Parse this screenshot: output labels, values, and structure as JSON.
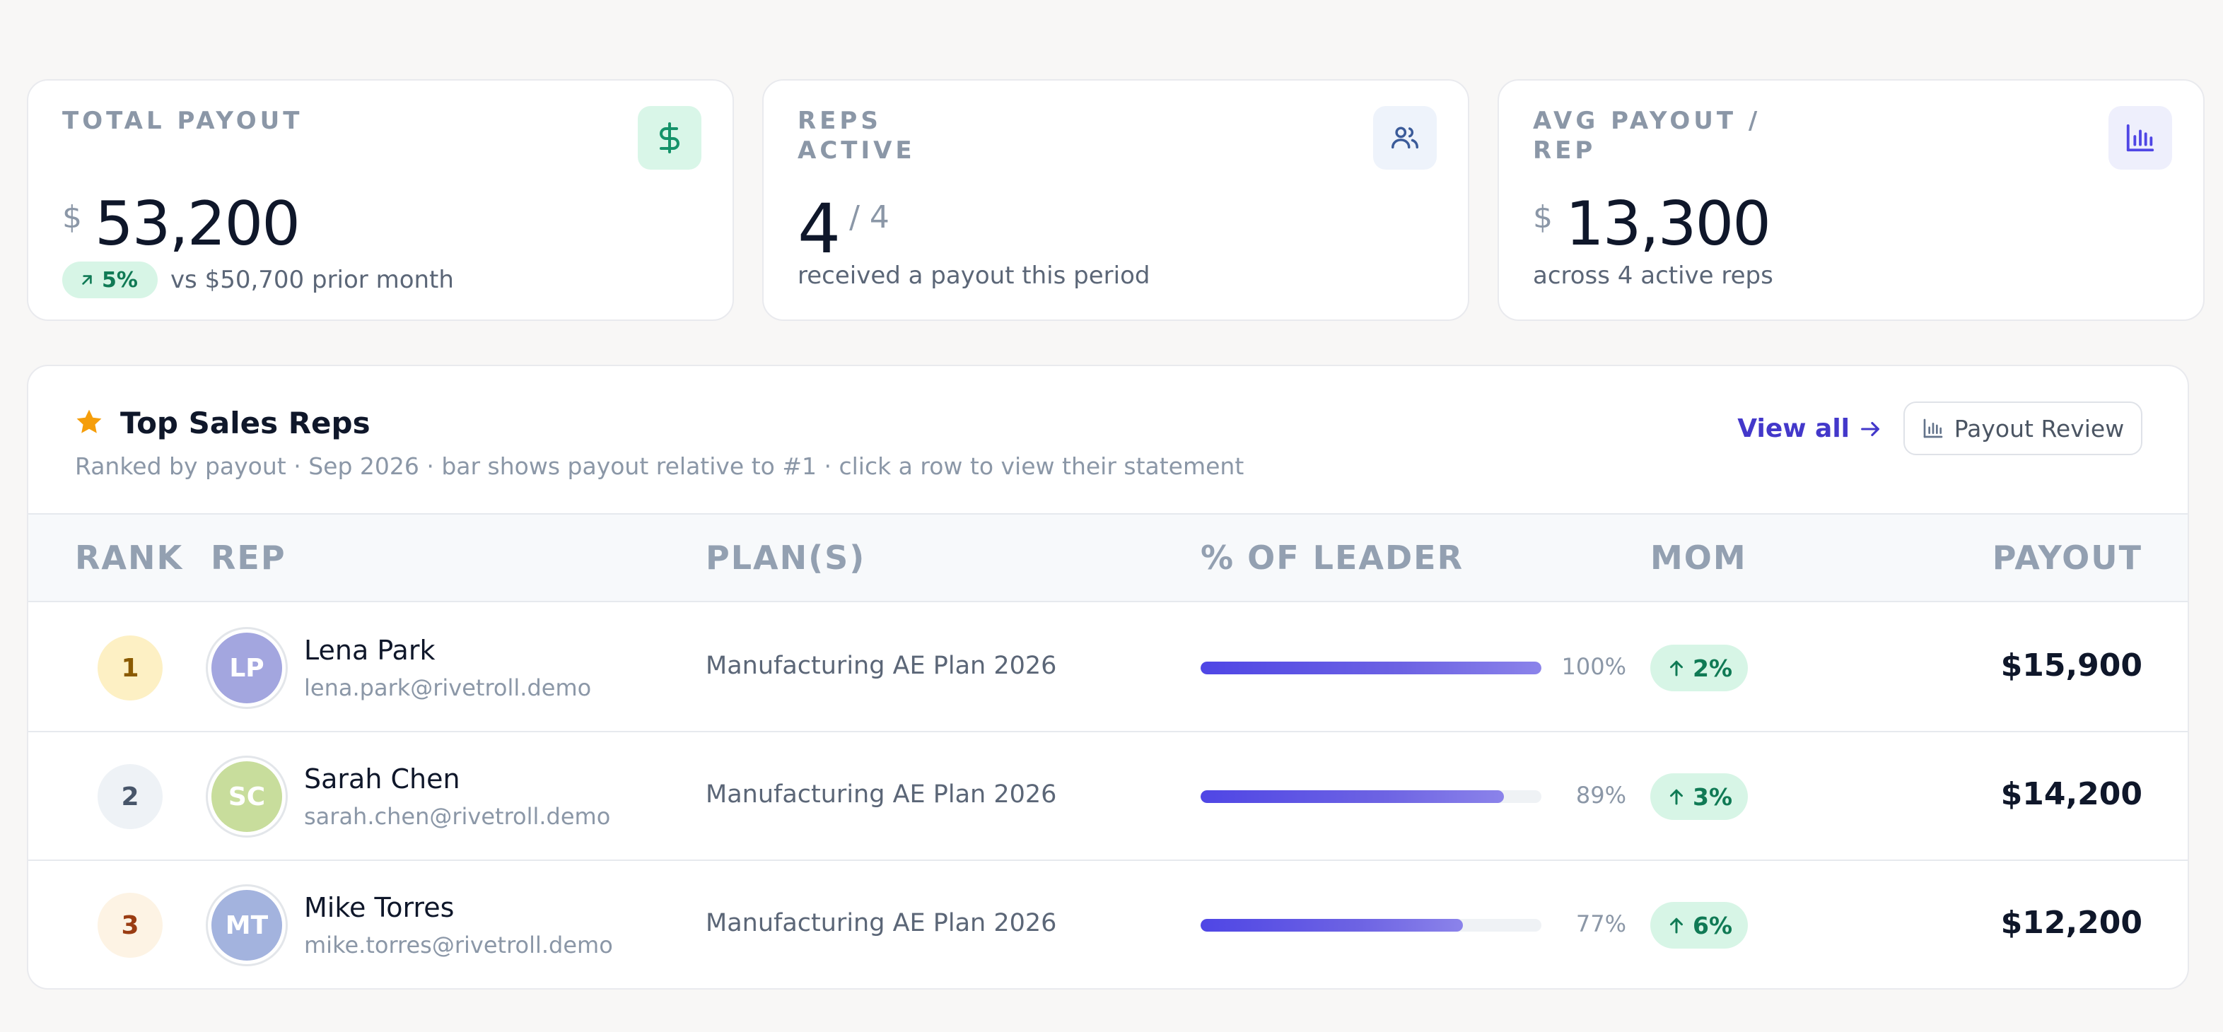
{
  "kpis": {
    "total_payout": {
      "label": "TOTAL PAYOUT",
      "currency": "$",
      "value": "53,200",
      "delta": "5%",
      "comparison": "vs $50,700 prior month",
      "icon": "dollar-icon"
    },
    "reps_active": {
      "label": "REPS ACTIVE",
      "value": "4",
      "total": "/ 4",
      "caption": "received a payout this period",
      "icon": "users-icon"
    },
    "avg_payout": {
      "label": "AVG PAYOUT / REP",
      "currency": "$",
      "value": "13,300",
      "caption": "across 4 active reps",
      "icon": "bar-chart-icon"
    }
  },
  "leaderboard": {
    "title": "Top Sales Reps",
    "subtitle": "Ranked by payout · Sep 2026 · bar shows payout relative to #1 · click a row to view their statement",
    "view_all": "View all",
    "review_button": "Payout Review",
    "columns": {
      "rank": "RANK",
      "rep": "REP",
      "plans": "PLAN(S)",
      "leader": "% OF LEADER",
      "mom": "MOM",
      "payout": "PAYOUT"
    },
    "rows": [
      {
        "rank": "1",
        "initials": "LP",
        "name": "Lena Park",
        "email": "lena.park@rivetroll.demo",
        "plan": "Manufacturing AE Plan 2026",
        "pct_of_leader": 100,
        "pct_label": "100%",
        "mom": "2%",
        "payout": "$15,900",
        "avatar_color": "#a3a6df",
        "rank_bg": "#fdf0c4",
        "rank_fg": "#8a5a00"
      },
      {
        "rank": "2",
        "initials": "SC",
        "name": "Sarah Chen",
        "email": "sarah.chen@rivetroll.demo",
        "plan": "Manufacturing AE Plan 2026",
        "pct_of_leader": 89,
        "pct_label": "89%",
        "mom": "3%",
        "payout": "$14,200",
        "avatar_color": "#c8dd9c",
        "rank_bg": "#eef2f6",
        "rank_fg": "#475569"
      },
      {
        "rank": "3",
        "initials": "MT",
        "name": "Mike Torres",
        "email": "mike.torres@rivetroll.demo",
        "plan": "Manufacturing AE Plan 2026",
        "pct_of_leader": 77,
        "pct_label": "77%",
        "mom": "6%",
        "payout": "$12,200",
        "avatar_color": "#a3b3de",
        "rank_bg": "#fdf3e4",
        "rank_fg": "#9a3c12"
      }
    ]
  }
}
